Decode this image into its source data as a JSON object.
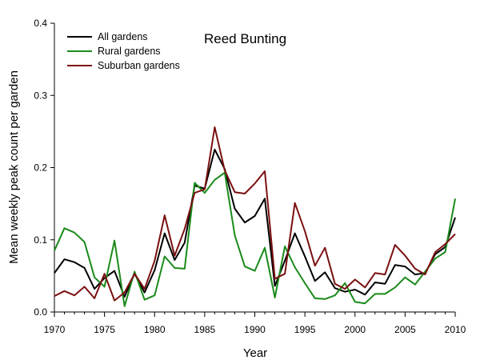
{
  "chart_data": {
    "type": "line",
    "title": "Reed Bunting",
    "xlabel": "Year",
    "ylabel": "Mean weekly peak count per garden",
    "xlim": [
      1970,
      2010
    ],
    "ylim": [
      0,
      0.4
    ],
    "x_ticks": [
      1970,
      1975,
      1980,
      1985,
      1990,
      1995,
      2000,
      2005,
      2010
    ],
    "y_ticks": [
      0.0,
      0.1,
      0.2,
      0.3,
      0.4
    ],
    "y_tick_labels": [
      "0.0",
      "0.1",
      "0.2",
      "0.3",
      "0.4"
    ],
    "grid": false,
    "legend_position": "top-left",
    "x": [
      1970,
      1971,
      1972,
      1973,
      1974,
      1975,
      1976,
      1977,
      1978,
      1979,
      1980,
      1981,
      1982,
      1983,
      1984,
      1985,
      1986,
      1987,
      1988,
      1989,
      1990,
      1991,
      1992,
      1993,
      1994,
      1995,
      1996,
      1997,
      1998,
      1999,
      2000,
      2001,
      2002,
      2003,
      2004,
      2005,
      2006,
      2007,
      2008,
      2009,
      2010
    ],
    "series": [
      {
        "name": "All gardens",
        "color": "#000000",
        "values": [
          0.054,
          0.073,
          0.069,
          0.061,
          0.032,
          0.047,
          0.057,
          0.021,
          0.053,
          0.027,
          0.058,
          0.109,
          0.072,
          0.096,
          0.175,
          0.171,
          0.225,
          0.198,
          0.143,
          0.124,
          0.133,
          0.157,
          0.036,
          0.071,
          0.109,
          0.077,
          0.043,
          0.055,
          0.033,
          0.028,
          0.031,
          0.024,
          0.041,
          0.039,
          0.065,
          0.063,
          0.052,
          0.054,
          0.08,
          0.09,
          0.131
        ]
      },
      {
        "name": "Rural gardens",
        "color": "#1a8a1a",
        "values": [
          0.085,
          0.116,
          0.11,
          0.097,
          0.048,
          0.035,
          0.099,
          0.008,
          0.056,
          0.017,
          0.023,
          0.077,
          0.061,
          0.06,
          0.179,
          0.165,
          0.183,
          0.193,
          0.106,
          0.063,
          0.057,
          0.089,
          0.02,
          0.091,
          0.062,
          0.04,
          0.019,
          0.018,
          0.023,
          0.04,
          0.014,
          0.012,
          0.025,
          0.025,
          0.034,
          0.048,
          0.038,
          0.056,
          0.074,
          0.083,
          0.157
        ]
      },
      {
        "name": "Suburban gardens",
        "color": "#7a1010",
        "values": [
          0.022,
          0.029,
          0.023,
          0.035,
          0.019,
          0.053,
          0.016,
          0.027,
          0.053,
          0.032,
          0.071,
          0.134,
          0.078,
          0.115,
          0.165,
          0.17,
          0.256,
          0.196,
          0.166,
          0.164,
          0.178,
          0.195,
          0.046,
          0.053,
          0.151,
          0.112,
          0.064,
          0.089,
          0.039,
          0.032,
          0.045,
          0.034,
          0.054,
          0.052,
          0.093,
          0.078,
          0.06,
          0.052,
          0.083,
          0.094,
          0.108
        ]
      }
    ]
  }
}
